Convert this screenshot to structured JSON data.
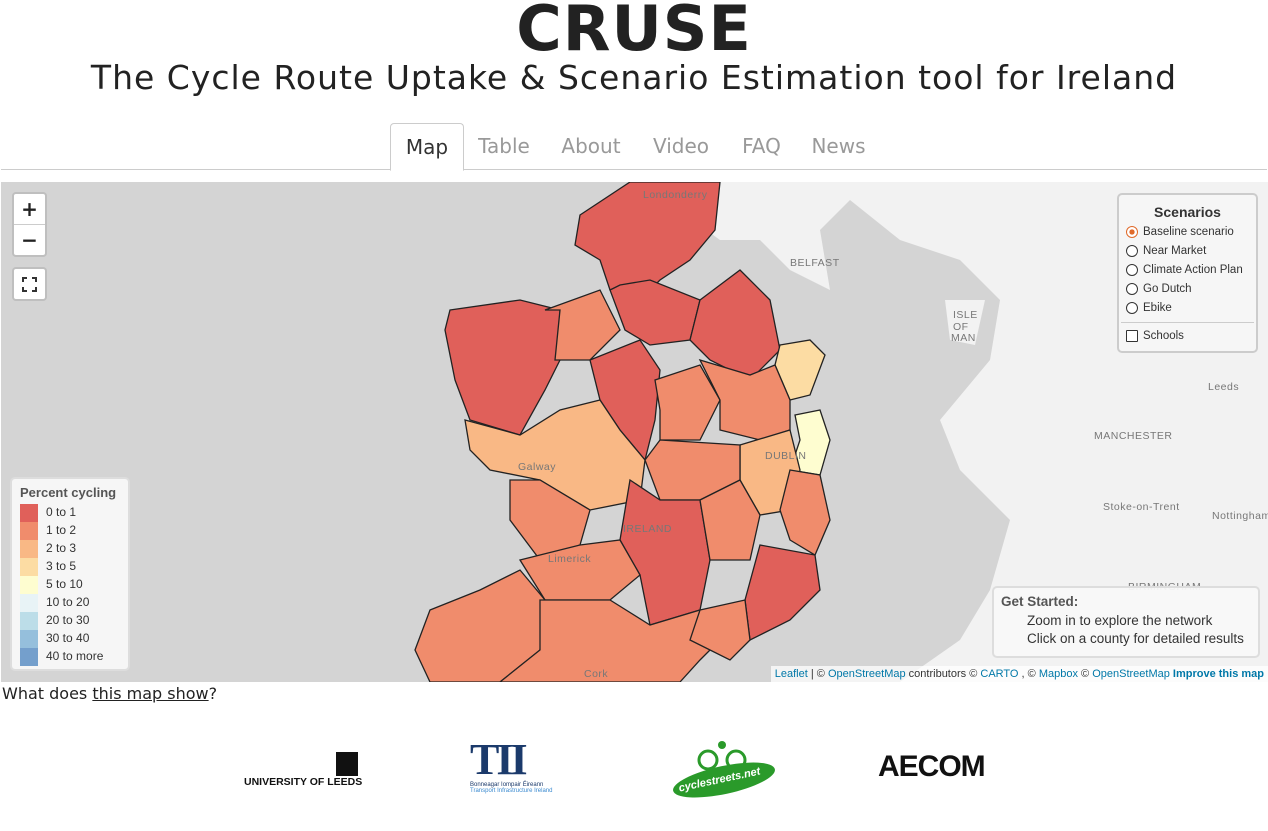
{
  "header": {
    "title": "CRUSE",
    "subtitle": "The Cycle Route Uptake & Scenario Estimation tool for Ireland"
  },
  "tabs": [
    "Map",
    "Table",
    "About",
    "Video",
    "FAQ",
    "News"
  ],
  "map": {
    "zoom_in": "+",
    "zoom_out": "−",
    "scenarios": {
      "title": "Scenarios",
      "options": [
        "Baseline scenario",
        "Near Market",
        "Climate Action Plan",
        "Go Dutch",
        "Ebike"
      ],
      "checkbox": "Schools"
    },
    "legend": {
      "title": "Percent cycling",
      "items": [
        {
          "label": "0 to 1",
          "color": "#e0605a"
        },
        {
          "label": "1 to 2",
          "color": "#f08c6c"
        },
        {
          "label": "2 to 3",
          "color": "#f9b885"
        },
        {
          "label": "3 to 5",
          "color": "#fcdca3"
        },
        {
          "label": "5 to 10",
          "color": "#fefdd0"
        },
        {
          "label": "10 to 20",
          "color": "#e8f3f6"
        },
        {
          "label": "20 to 30",
          "color": "#bcdde8"
        },
        {
          "label": "30 to 40",
          "color": "#95bfdc"
        },
        {
          "label": "40 to more",
          "color": "#749fcc"
        }
      ]
    },
    "places": [
      "Londonderry",
      "BELFAST",
      "ISLE",
      "OF",
      "MAN",
      "Leeds",
      "MANCHESTER",
      "DUBLIN",
      "Galway",
      "IRELAND",
      "Limerick",
      "Cork",
      "Stoke-on-Trent",
      "Nottingham",
      "BIRMINGHAM"
    ],
    "get_started": {
      "title": "Get Started:",
      "lines": [
        "Zoom in to explore the network",
        "Click on a county for detailed results"
      ]
    },
    "attribution": [
      "Leaflet",
      "| ©",
      "OpenStreetMap",
      "contributors ©",
      "CARTO",
      ", ©",
      "Mapbox",
      "©",
      "OpenStreetMap",
      "Improve this map"
    ]
  },
  "footer": {
    "question": "What does",
    "link": "this map show",
    "end": "?"
  },
  "logos": {
    "leeds": "UNIVERSITY OF LEEDS",
    "tii": "TII",
    "tii_irish": "Bonneagar Iompair Éireann",
    "tii_english": "Transport Infrastructure Ireland",
    "cyclestreets": "cyclestreets.net",
    "aecom": "AECOM"
  }
}
